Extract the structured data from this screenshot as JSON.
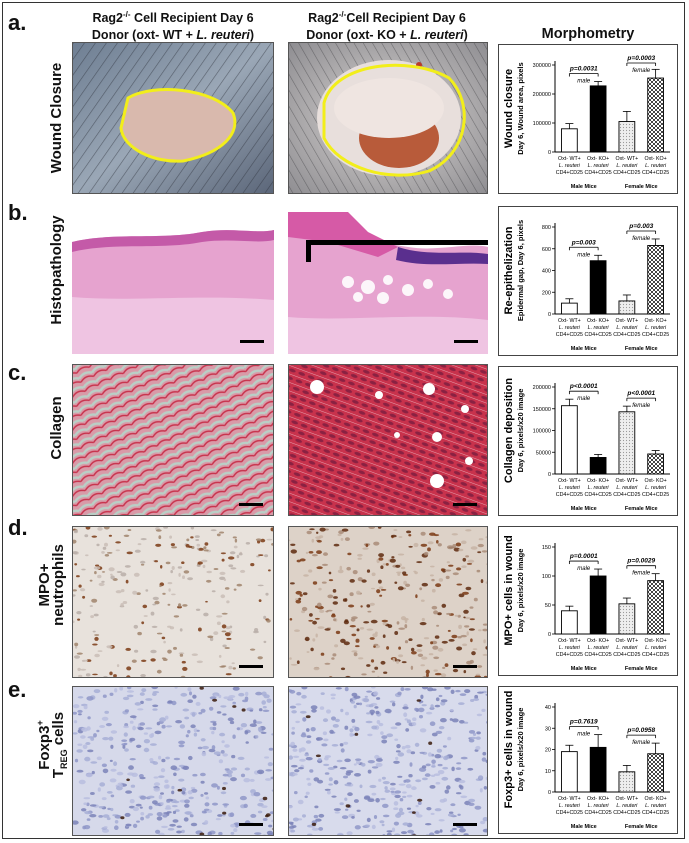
{
  "header": {
    "col1_line1": "Rag2",
    "col1_sup": "-/-",
    "col1_line1_rest": " Cell Recipient Day 6",
    "col1_line2_pre": "Donor (oxt- WT + ",
    "col1_line2_em": "L. reuteri",
    "col1_line2_post": ")",
    "col2_line1": "Rag2",
    "col2_sup": "-/-",
    "col2_line1_rest": "Cell Recipient Day 6",
    "col2_line2_pre": "Donor (oxt- KO + ",
    "col2_line2_em": "L. reuteri",
    "col2_line2_post": ")",
    "col3": "Morphometry"
  },
  "rows": [
    {
      "letter": "a.",
      "label": "Wound Closure"
    },
    {
      "letter": "b.",
      "label": "Histopathology"
    },
    {
      "letter": "c.",
      "label": "Collagen"
    },
    {
      "letter": "d.",
      "label_line1": "MPO+",
      "label_line2": "neutrophils"
    },
    {
      "letter": "e.",
      "label_line1": "Foxp3",
      "label_sup": "+",
      "label_line2_pre": "T",
      "label_sub": "REG",
      "label_line2_post": " cells"
    }
  ],
  "colors": {
    "wound_outline": "#f2ee1a",
    "he_pink": "#e6a3cf",
    "collagen_red": "#c8324c",
    "brown_nuclei": "#7a3a14",
    "blue_cells": "#8f97c8"
  },
  "chart_data": [
    {
      "type": "bar",
      "ylabel_line1": "Wound closure",
      "ylabel_line2": "Day 6, Wound area, pixels",
      "ylim": [
        0,
        300000
      ],
      "yticks": [
        "0",
        "100000",
        "200000",
        "300000"
      ],
      "categories": [
        "Oxt- WT+|L. reuteri|CD4+CD25",
        "Oxt- KO+|L. reuteri|CD4+CD25",
        "Oxt- WT+|L. reuteri|CD4+CD25",
        "Oxt- KO+|L. reuteri|CD4+CD25"
      ],
      "values": [
        80000,
        228000,
        105000,
        255000
      ],
      "errors": [
        18000,
        15000,
        35000,
        30000
      ],
      "groups": [
        "Male Mice",
        "Female Mice"
      ],
      "sex_labels": [
        "male",
        "female"
      ],
      "pvalues": [
        "p=0.0031",
        "p=0.0003"
      ]
    },
    {
      "type": "bar",
      "ylabel_line1": "Re-epithelization",
      "ylabel_line2": "Epidermal gap, Day 6, pixels",
      "ylim": [
        0,
        800
      ],
      "yticks": [
        "0",
        "200",
        "400",
        "600",
        "800"
      ],
      "categories": [
        "Oxt- WT+|L. reuteri|CD4+CD25",
        "Oxt- KO+|L. reuteri|CD4+CD25",
        "Oxt- WT+|L. reuteri|CD4+CD25",
        "Oxt- KO+|L. reuteri|CD4+CD25"
      ],
      "values": [
        100,
        490,
        120,
        630
      ],
      "errors": [
        40,
        50,
        55,
        60
      ],
      "groups": [
        "Male Mice",
        "Female Mice"
      ],
      "sex_labels": [
        "male",
        "female"
      ],
      "pvalues": [
        "p=0.003",
        "p=0.003"
      ]
    },
    {
      "type": "bar",
      "ylabel_line1": "Collagen deposition",
      "ylabel_line2": "Day 6, pixels/x20 image",
      "ylim": [
        0,
        200000
      ],
      "yticks": [
        "0",
        "50000",
        "100000",
        "150000",
        "200000"
      ],
      "categories": [
        "Oxt- WT+|L. reuteri|CD4+CD25",
        "Oxt- KO+|L. reuteri|CD4+CD25",
        "Oxt- WT+|L. reuteri|CD4+CD25",
        "Oxt- KO+|L. reuteri|CD4+CD25"
      ],
      "values": [
        157000,
        38000,
        143000,
        46000
      ],
      "errors": [
        15000,
        7000,
        13000,
        8000
      ],
      "groups": [
        "Male Mice",
        "Female Mice"
      ],
      "sex_labels": [
        "male",
        "female"
      ],
      "pvalues": [
        "p<0.0001",
        "p<0.0001"
      ]
    },
    {
      "type": "bar",
      "ylabel_line1": "MPO+ cells in wound",
      "ylabel_line2": "Day 6, pixels/x20 image",
      "ylim": [
        0,
        150
      ],
      "yticks": [
        "0",
        "50",
        "100",
        "150"
      ],
      "categories": [
        "Oxt- WT+|L. reuteri|CD4+CD25",
        "Oxt- KO+|L. reuteri|CD4+CD25",
        "Oxt- WT+|L. reuteri|CD4+CD25",
        "Oxt- KO+|L. reuteri|CD4+CD25"
      ],
      "values": [
        40,
        100,
        52,
        92
      ],
      "errors": [
        8,
        12,
        10,
        12
      ],
      "groups": [
        "Male Mice",
        "Female Mice"
      ],
      "sex_labels": [
        "male",
        "female"
      ],
      "pvalues": [
        "p=0.0001",
        "p=0.0029"
      ]
    },
    {
      "type": "bar",
      "ylabel_line1": "Foxp3+ cells in wound",
      "ylabel_line2": "Day 6, pixels/x20 image",
      "ylim": [
        0,
        40
      ],
      "yticks": [
        "0",
        "10",
        "20",
        "30",
        "40"
      ],
      "categories": [
        "Oxt- WT+|L. reuteri|CD4+CD25",
        "Oxt- KO+|L. reuteri|CD4+CD25",
        "Oxt- WT+|L. reuteri|CD4+CD25",
        "Oxt- KO+|L. reuteri|CD4+CD25"
      ],
      "values": [
        19,
        21,
        9.5,
        18
      ],
      "errors": [
        3,
        6,
        3,
        5
      ],
      "groups": [
        "Male Mice",
        "Female Mice"
      ],
      "sex_labels": [
        "male",
        "female"
      ],
      "pvalues": [
        "p=0.7619",
        "p=0.0958"
      ]
    }
  ]
}
